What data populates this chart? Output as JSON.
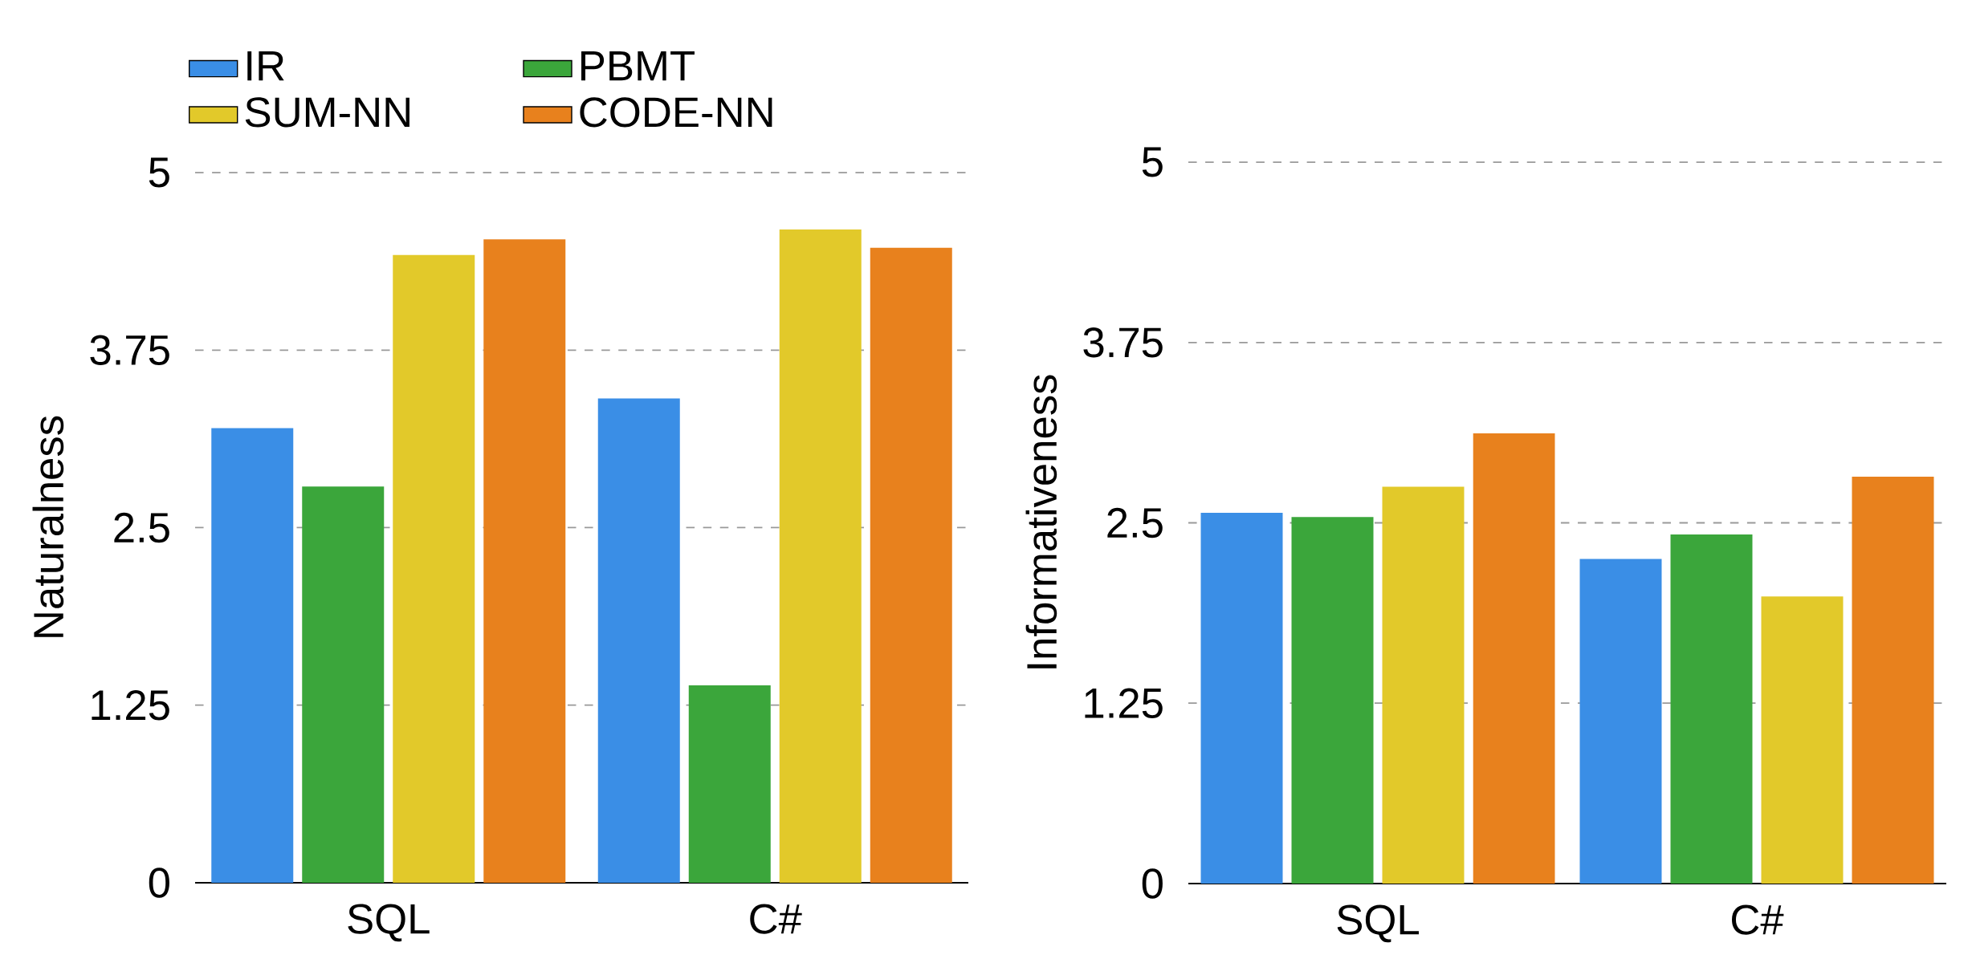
{
  "chart_data": [
    {
      "type": "bar",
      "categories": [
        "SQL",
        "C#"
      ],
      "ylabel": "Naturalness",
      "ylim": [
        0,
        5
      ],
      "yticks": [
        0,
        1.25,
        2.5,
        3.75,
        5
      ],
      "grid": "y",
      "legend": "top left",
      "series": [
        {
          "name": "IR",
          "color": "#3a8ee6",
          "values": [
            3.2,
            3.41
          ]
        },
        {
          "name": "PBMT",
          "color": "#3ba63b",
          "values": [
            2.79,
            1.39
          ]
        },
        {
          "name": "SUM-NN",
          "color": "#e2c92a",
          "values": [
            4.42,
            4.6
          ]
        },
        {
          "name": "CODE-NN",
          "color": "#e8811d",
          "values": [
            4.53,
            4.47
          ]
        }
      ]
    },
    {
      "type": "bar",
      "categories": [
        "SQL",
        "C#"
      ],
      "ylabel": "Informativeness",
      "ylim": [
        0,
        5
      ],
      "yticks": [
        0,
        1.25,
        2.5,
        3.75,
        5
      ],
      "grid": "y",
      "series": [
        {
          "color": "#3a8ee6",
          "values": [
            2.57,
            2.25
          ]
        },
        {
          "color": "#3ba63b",
          "values": [
            2.54,
            2.42
          ]
        },
        {
          "color": "#e2c92a",
          "values": [
            2.75,
            1.99
          ]
        },
        {
          "color": "#e8811d",
          "values": [
            3.12,
            2.82
          ]
        }
      ]
    }
  ]
}
